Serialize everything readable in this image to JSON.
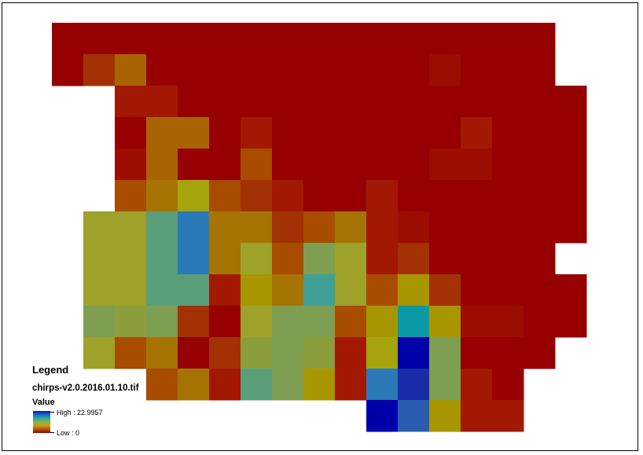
{
  "legend": {
    "title": "Legend",
    "layer_name": "chirps-v2.0.2016.01.10.tif",
    "field_label": "Value",
    "high_label": "High : 22.9957",
    "low_label": "Low : 0",
    "high_value": 22.9957,
    "low_value": 0
  },
  "raster": {
    "palette": {
      "R": "#960000",
      "r": "#9c0c00",
      "d": "#a21802",
      "b": "#a23204",
      "o": "#a84c00",
      "a": "#a86402",
      "k": "#a67404",
      "y": "#a89600",
      "Y": "#a6a40c",
      "l": "#a6a61c",
      "L": "#9ea22a",
      "g": "#8c9e3c",
      "G": "#7e9e52",
      "m": "#6a9e66",
      "t": "#5a9e7a",
      "T": "#40a096",
      "c": "#0a9aa6",
      "s": "#2a7ab8",
      "B": "#2a5cb0",
      "n": "#1a2caa",
      "N": "#0000aa"
    },
    "rows": [
      "R RRRRRRRRRRRRRRRR..",
      "R ba RRRRRRRRR rRRR..",
      ".. ddRRRRRRRRRRRRRRRR",
      ".. RaaR dRRRRRR dRRRRR",
      ".. raRR oRRRRR rrRRRRR",
      "... ok Yo b dRR d RRRRRR",
      ".. LLt s k k b o k d r RRRRR",
      ".. LLt s k L o G L d b RRR.",
      ".. LLt t d y k T L o y b RRRR",
      ".. G g G b R L G G o y c y r r R R",
      ".. L o k R b g G g d Y N G RR RR",
      "... o k d t G y d s n G dRR.",
      "........... N B y d d.."
    ]
  }
}
